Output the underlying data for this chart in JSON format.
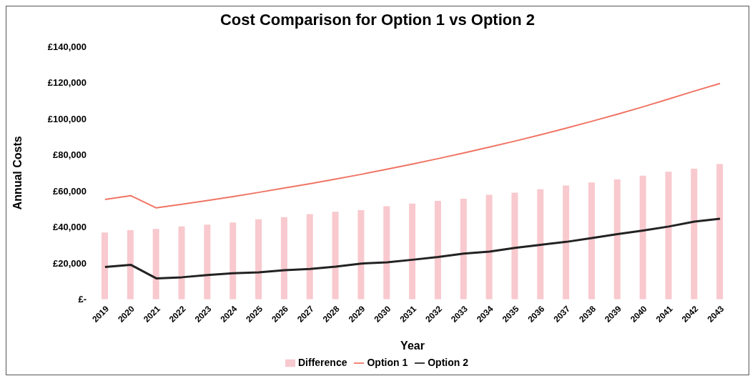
{
  "chart_data": {
    "type": "bar",
    "title": "Cost Comparison for Option 1 vs Option 2",
    "xlabel": "Year",
    "ylabel": "Annual Costs",
    "categories": [
      "2019",
      "2020",
      "2021",
      "2022",
      "2023",
      "2024",
      "2025",
      "2026",
      "2027",
      "2028",
      "2029",
      "2030",
      "2031",
      "2032",
      "2033",
      "2034",
      "2035",
      "2036",
      "2037",
      "2038",
      "2039",
      "2040",
      "2041",
      "2042",
      "2043"
    ],
    "series": [
      {
        "name": "Difference",
        "color": "#f8c9ce",
        "values": [
          37000,
          38300,
          39000,
          40400,
          41300,
          42500,
          44300,
          45500,
          47200,
          48500,
          49400,
          51500,
          53000,
          54500,
          55700,
          57900,
          59100,
          60900,
          63000,
          64700,
          66400,
          68500,
          70600,
          72300,
          74900
        ]
      },
      {
        "name": "Option 1",
        "type": "line",
        "color": "#f07464",
        "values": [
          55300,
          57400,
          50600,
          52600,
          54700,
          56900,
          59200,
          61600,
          64000,
          66600,
          69200,
          72000,
          74900,
          77900,
          81000,
          84300,
          87600,
          91100,
          94800,
          98600,
          102500,
          106600,
          110900,
          115300,
          119500
        ]
      },
      {
        "name": "Option 2",
        "type": "line",
        "color": "#222222",
        "values": [
          17900,
          19100,
          11600,
          12200,
          13400,
          14400,
          14900,
          16100,
          16800,
          18100,
          19800,
          20500,
          21900,
          23400,
          25300,
          26400,
          28500,
          30200,
          31800,
          33900,
          36100,
          38100,
          40300,
          43000,
          44600
        ]
      }
    ],
    "ylim": [
      0,
      140000
    ],
    "yticks": [
      {
        "value": 0,
        "label": "£-"
      },
      {
        "value": 20000,
        "label": "£20,000"
      },
      {
        "value": 40000,
        "label": "£40,000"
      },
      {
        "value": 60000,
        "label": "£60,000"
      },
      {
        "value": 80000,
        "label": "£80,000"
      },
      {
        "value": 100000,
        "label": "£100,000"
      },
      {
        "value": 120000,
        "label": "£120,000"
      },
      {
        "value": 140000,
        "label": "£140,000"
      }
    ],
    "legend": "bottom",
    "marker": "none",
    "line_style": "solid"
  }
}
